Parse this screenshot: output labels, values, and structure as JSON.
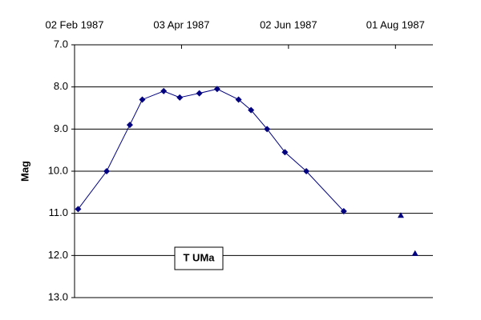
{
  "chart_data": {
    "type": "line",
    "y_label": "Mag",
    "annotation": "T UMa",
    "y_inverted": true,
    "grid": true,
    "xlim": [
      "1987-02-02",
      "1987-08-22"
    ],
    "xticks": [
      {
        "value": "1987-02-02",
        "label": "02 Feb 1987"
      },
      {
        "value": "1987-04-03",
        "label": "03 Apr 1987"
      },
      {
        "value": "1987-06-02",
        "label": "02 Jun 1987"
      },
      {
        "value": "1987-08-01",
        "label": "01 Aug 1987"
      }
    ],
    "ylim": [
      7.0,
      13.0
    ],
    "yticks": [
      {
        "value": 7,
        "label": "7.0"
      },
      {
        "value": 8,
        "label": "8.0"
      },
      {
        "value": 9,
        "label": "9.0"
      },
      {
        "value": 10,
        "label": "10.0"
      },
      {
        "value": 11,
        "label": "11.0"
      },
      {
        "value": 12,
        "label": "12.0"
      },
      {
        "value": 13,
        "label": "13.0"
      }
    ],
    "series": [
      {
        "color": "#000080",
        "marker": "diamond",
        "line": true,
        "x": [
          "1987-02-04",
          "1987-02-20",
          "1987-03-05",
          "1987-03-12",
          "1987-03-24",
          "1987-04-02",
          "1987-04-13",
          "1987-04-23",
          "1987-05-05",
          "1987-05-12",
          "1987-05-21",
          "1987-05-31",
          "1987-06-12",
          "1987-07-03"
        ],
        "values": [
          10.9,
          10.0,
          8.9,
          8.3,
          8.1,
          8.25,
          8.15,
          8.05,
          8.3,
          8.55,
          9.0,
          9.55,
          10.0,
          10.95
        ]
      },
      {
        "color": "#000080",
        "marker": "triangle",
        "line": false,
        "x": [
          "1987-08-04",
          "1987-08-12"
        ],
        "values": [
          11.05,
          11.95
        ]
      }
    ]
  }
}
